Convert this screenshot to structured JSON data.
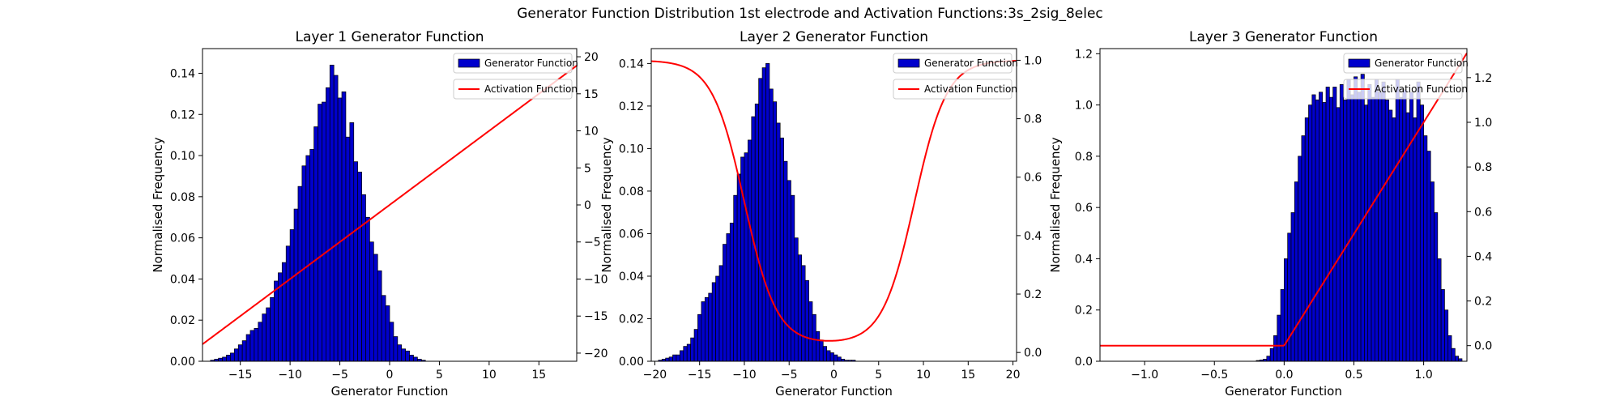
{
  "figure": {
    "suptitle": "Generator Function Distribution 1st electrode and Activation Functions:3s_2sig_8elec"
  },
  "chart_data": [
    {
      "type": "bar",
      "title": "Layer 1 Generator Function",
      "xlabel": "Generator Function",
      "ylabel": "Normalised Frequency",
      "xlim": [
        -18.8,
        18.8
      ],
      "ylim": [
        0,
        0.152
      ],
      "y2lim": [
        -21.1,
        21.1
      ],
      "xticks": [
        -15,
        -10,
        -5,
        0,
        5,
        10,
        15
      ],
      "xtick_labels": [
        "−15",
        "−10",
        "−5",
        "0",
        "5",
        "10",
        "15"
      ],
      "yticks": [
        0,
        0.02,
        0.04,
        0.06,
        0.08,
        0.1,
        0.12,
        0.14
      ],
      "ytick_labels": [
        "0.00",
        "0.02",
        "0.04",
        "0.06",
        "0.08",
        "0.10",
        "0.12",
        "0.14"
      ],
      "y2ticks": [
        -20,
        -15,
        -10,
        -5,
        0,
        5,
        10,
        15,
        20
      ],
      "y2tick_labels": [
        "−20",
        "−15",
        "−10",
        "−5",
        "0",
        "5",
        "10",
        "15",
        "20"
      ],
      "hist": {
        "name": "Generator Function",
        "color": "#0000cc",
        "edge": "#000000",
        "x0": -18.0,
        "bin_width": 0.4,
        "values": [
          0.0005,
          0.001,
          0.0015,
          0.002,
          0.003,
          0.004,
          0.006,
          0.008,
          0.01,
          0.013,
          0.015,
          0.016,
          0.019,
          0.023,
          0.026,
          0.031,
          0.039,
          0.043,
          0.048,
          0.056,
          0.064,
          0.074,
          0.085,
          0.095,
          0.1,
          0.103,
          0.114,
          0.125,
          0.126,
          0.133,
          0.144,
          0.139,
          0.128,
          0.131,
          0.109,
          0.116,
          0.097,
          0.092,
          0.081,
          0.07,
          0.058,
          0.052,
          0.044,
          0.032,
          0.027,
          0.019,
          0.012,
          0.008,
          0.006,
          0.005,
          0.003,
          0.002,
          0.001,
          0.0005
        ]
      },
      "activation": {
        "name": "Activation Function",
        "color": "#ff0000",
        "kind": "linear",
        "x": [
          -18.8,
          18.8
        ],
        "y": [
          -18.8,
          18.8
        ]
      },
      "legend": "upper-right"
    },
    {
      "type": "bar",
      "title": "Layer 2 Generator Function",
      "xlabel": "Generator Function",
      "ylabel": "Normalised Frequency",
      "xlim": [
        -20.4,
        20.4
      ],
      "ylim": [
        0,
        0.147
      ],
      "y2lim": [
        -0.03,
        1.04
      ],
      "xticks": [
        -20,
        -15,
        -10,
        -5,
        0,
        5,
        10,
        15,
        20
      ],
      "xtick_labels": [
        "−20",
        "−15",
        "−10",
        "−5",
        "0",
        "5",
        "10",
        "15",
        "20"
      ],
      "yticks": [
        0,
        0.02,
        0.04,
        0.06,
        0.08,
        0.1,
        0.12,
        0.14
      ],
      "ytick_labels": [
        "0.00",
        "0.02",
        "0.04",
        "0.06",
        "0.08",
        "0.10",
        "0.12",
        "0.14"
      ],
      "y2ticks": [
        0,
        0.2,
        0.4,
        0.6,
        0.8,
        1.0
      ],
      "y2tick_labels": [
        "0.0",
        "0.2",
        "0.4",
        "0.6",
        "0.8",
        "1.0"
      ],
      "hist": {
        "name": "Generator Function",
        "color": "#0000cc",
        "edge": "#000000",
        "x0": -19.6,
        "bin_width": 0.4,
        "values": [
          0.0005,
          0.001,
          0.0015,
          0.002,
          0.003,
          0.003,
          0.005,
          0.007,
          0.008,
          0.011,
          0.015,
          0.022,
          0.028,
          0.03,
          0.032,
          0.037,
          0.04,
          0.045,
          0.055,
          0.06,
          0.065,
          0.078,
          0.088,
          0.096,
          0.098,
          0.104,
          0.115,
          0.121,
          0.133,
          0.138,
          0.14,
          0.128,
          0.122,
          0.112,
          0.105,
          0.094,
          0.085,
          0.078,
          0.058,
          0.05,
          0.045,
          0.038,
          0.028,
          0.022,
          0.014,
          0.01,
          0.007,
          0.005,
          0.004,
          0.003,
          0.002,
          0.001,
          0.0005,
          0.0005,
          0.0005
        ]
      },
      "activation": {
        "name": "Activation Function",
        "color": "#ff0000",
        "kind": "two_sigmoid",
        "x": [
          -20.4,
          20.4
        ],
        "params": {
          "low": 0.03,
          "centers": [
            -10,
            9
          ],
          "scale": 1.8
        }
      },
      "legend": "upper-right"
    },
    {
      "type": "bar",
      "title": "Layer 3 Generator Function",
      "xlabel": "Generator Function",
      "ylabel": "Normalised Frequency",
      "xlim": [
        -1.32,
        1.31
      ],
      "ylim": [
        0,
        1.22
      ],
      "y2lim": [
        -0.07,
        1.33
      ],
      "xticks": [
        -1.0,
        -0.5,
        0.0,
        0.5,
        1.0
      ],
      "xtick_labels": [
        "−1.0",
        "−0.5",
        "0.0",
        "0.5",
        "1.0"
      ],
      "yticks": [
        0,
        0.2,
        0.4,
        0.6,
        0.8,
        1.0,
        1.2
      ],
      "ytick_labels": [
        "0.0",
        "0.2",
        "0.4",
        "0.6",
        "0.8",
        "1.0",
        "1.2"
      ],
      "y2ticks": [
        0,
        0.2,
        0.4,
        0.6,
        0.8,
        1.0,
        1.2
      ],
      "y2tick_labels": [
        "0.0",
        "0.2",
        "0.4",
        "0.6",
        "0.8",
        "1.0",
        "1.2"
      ],
      "hist": {
        "name": "Generator Function",
        "color": "#0000cc",
        "edge": "#000000",
        "x0": -0.2,
        "bin_width": 0.025,
        "values": [
          0.003,
          0.005,
          0.008,
          0.02,
          0.05,
          0.1,
          0.18,
          0.28,
          0.4,
          0.5,
          0.58,
          0.7,
          0.8,
          0.88,
          0.95,
          1.0,
          1.04,
          1.02,
          1.05,
          1.01,
          1.07,
          1.03,
          1.07,
          0.99,
          1.08,
          1.02,
          1.1,
          1.04,
          1.11,
          1.05,
          1.12,
          1.0,
          1.08,
          1.03,
          1.1,
          1.05,
          1.09,
          1.02,
          0.98,
          0.95,
          1.1,
          1.03,
          1.06,
          0.97,
          1.05,
          0.95,
          1.09,
          1.0,
          0.88,
          0.82,
          0.7,
          0.58,
          0.4,
          0.28,
          0.2,
          0.1,
          0.05,
          0.02,
          0.01
        ]
      },
      "activation": {
        "name": "Activation Function",
        "color": "#ff0000",
        "kind": "relu",
        "x": [
          -1.32,
          1.31
        ],
        "y_at_xmin": 0,
        "slope": 1
      },
      "legend": "upper-right"
    }
  ]
}
